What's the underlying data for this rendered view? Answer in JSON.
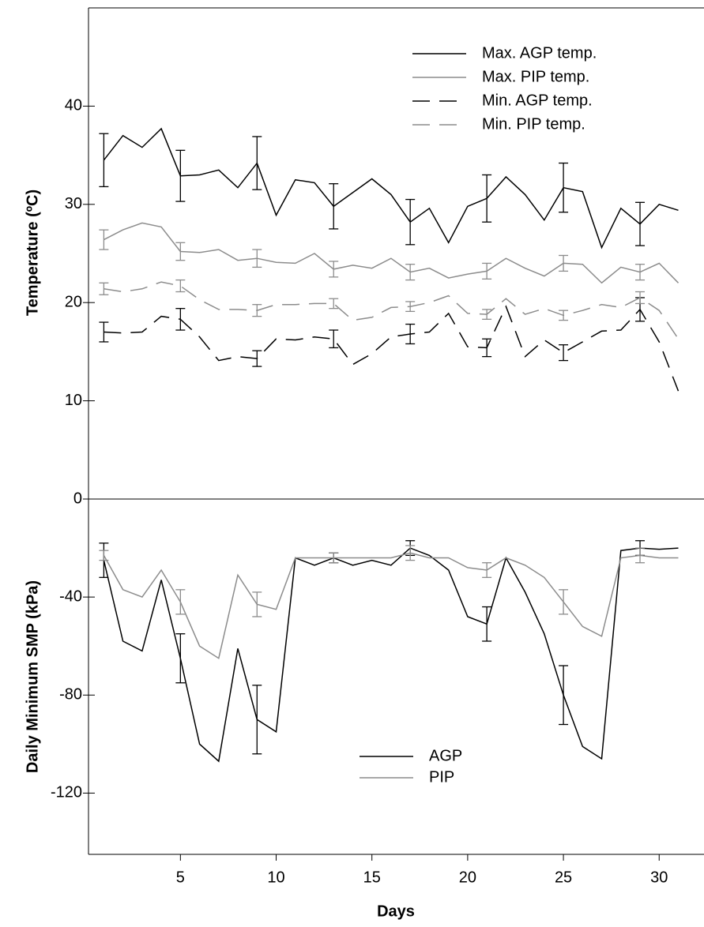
{
  "chart_data": [
    {
      "type": "line",
      "ylabel": "Temperature (ºC)",
      "x": [
        1,
        2,
        3,
        4,
        5,
        6,
        7,
        8,
        9,
        10,
        11,
        12,
        13,
        14,
        15,
        16,
        17,
        18,
        19,
        20,
        21,
        22,
        23,
        24,
        25,
        26,
        27,
        28,
        29,
        30,
        31
      ],
      "xlim": [
        0.2,
        32.3
      ],
      "ylim": [
        0,
        50
      ],
      "yticks": [
        0,
        10,
        20,
        30,
        40
      ],
      "legend": "upper right",
      "series": [
        {
          "name": "Max. AGP temp.",
          "color": "#000000",
          "dashed": false,
          "values": [
            34.5,
            37,
            35.8,
            37.7,
            32.9,
            33,
            33.5,
            31.7,
            34.2,
            28.9,
            32.5,
            32.2,
            29.8,
            31.2,
            32.6,
            31,
            28.2,
            29.6,
            26.1,
            29.8,
            30.6,
            32.8,
            31,
            28.4,
            31.7,
            31.3,
            25.6,
            29.6,
            28,
            30,
            29.4
          ],
          "errors": [
            2.7,
            null,
            null,
            null,
            2.6,
            null,
            null,
            null,
            2.7,
            null,
            null,
            null,
            2.3,
            null,
            null,
            null,
            2.3,
            null,
            null,
            null,
            2.4,
            null,
            null,
            null,
            2.5,
            null,
            null,
            null,
            2.2,
            null,
            null
          ]
        },
        {
          "name": "Max. PIP temp.",
          "color": "#8c8c8c",
          "dashed": false,
          "values": [
            26.4,
            27.4,
            28.1,
            27.7,
            25.2,
            25.1,
            25.4,
            24.3,
            24.5,
            24.1,
            24,
            25,
            23.4,
            23.8,
            23.5,
            24.5,
            23.1,
            23.5,
            22.5,
            22.9,
            23.2,
            24.5,
            23.5,
            22.7,
            24,
            23.9,
            22,
            23.6,
            23.1,
            24,
            22
          ],
          "errors": [
            1,
            null,
            null,
            null,
            0.9,
            null,
            null,
            null,
            0.9,
            null,
            null,
            null,
            0.8,
            null,
            null,
            null,
            0.8,
            null,
            null,
            null,
            0.8,
            null,
            null,
            null,
            0.8,
            null,
            null,
            null,
            0.8,
            null,
            null
          ]
        },
        {
          "name": "Min. AGP temp.",
          "color": "#000000",
          "dashed": true,
          "values": [
            17,
            16.9,
            17,
            18.6,
            18.3,
            16.5,
            14.1,
            14.5,
            14.3,
            16.3,
            16.2,
            16.5,
            16.3,
            13.7,
            14.8,
            16.5,
            16.8,
            17,
            18.9,
            15.5,
            15.4,
            19.6,
            14.5,
            16.2,
            14.9,
            16,
            17.1,
            17.2,
            19.3,
            16,
            11
          ],
          "errors": [
            1,
            null,
            null,
            null,
            1.1,
            null,
            null,
            null,
            0.8,
            null,
            null,
            null,
            0.9,
            null,
            null,
            null,
            1,
            null,
            null,
            null,
            0.9,
            null,
            null,
            null,
            0.8,
            null,
            null,
            null,
            1.2,
            null,
            null
          ]
        },
        {
          "name": "Min. PIP temp.",
          "color": "#8c8c8c",
          "dashed": true,
          "values": [
            21.4,
            21.1,
            21.4,
            22.1,
            21.7,
            20.3,
            19.3,
            19.3,
            19.2,
            19.8,
            19.8,
            19.9,
            19.9,
            18.2,
            18.5,
            19.5,
            19.6,
            20,
            20.7,
            18.9,
            18.8,
            20.4,
            18.8,
            19.4,
            18.7,
            19.2,
            19.8,
            19.5,
            20.5,
            19.2,
            16.3
          ],
          "errors": [
            0.6,
            null,
            null,
            null,
            0.6,
            null,
            null,
            null,
            0.6,
            null,
            null,
            null,
            0.5,
            null,
            null,
            null,
            0.5,
            null,
            null,
            null,
            0.5,
            null,
            null,
            null,
            0.5,
            null,
            null,
            null,
            0.6,
            null,
            null
          ]
        }
      ]
    },
    {
      "type": "line",
      "ylabel": "Daily Minimum SMP (kPa)",
      "xlabel": "Days",
      "x": [
        1,
        2,
        3,
        4,
        5,
        6,
        7,
        8,
        9,
        10,
        11,
        12,
        13,
        14,
        15,
        16,
        17,
        18,
        19,
        20,
        21,
        22,
        23,
        24,
        25,
        26,
        27,
        28,
        29,
        30,
        31
      ],
      "xlim": [
        0.2,
        32.3
      ],
      "xticks": [
        5,
        10,
        15,
        20,
        25,
        30
      ],
      "ylim": [
        -145,
        0
      ],
      "yticks": [
        -40,
        -80,
        -120
      ],
      "legend": "lower center",
      "series": [
        {
          "name": "AGP",
          "color": "#000000",
          "dashed": false,
          "values": [
            -25,
            -58,
            -62,
            -33,
            -65,
            -100,
            -107,
            -61,
            -90,
            -95,
            -24,
            -27,
            -24,
            -27,
            -25,
            -27,
            -20,
            -23,
            -29,
            -48,
            -51,
            -24,
            -38,
            -55,
            -80,
            -101,
            -106,
            -21,
            -20,
            -20.5,
            -20
          ],
          "errors": [
            7,
            null,
            null,
            null,
            10,
            null,
            null,
            null,
            14,
            null,
            null,
            null,
            2,
            null,
            null,
            null,
            3,
            null,
            null,
            null,
            7,
            null,
            null,
            null,
            12,
            null,
            null,
            null,
            3,
            null,
            null
          ]
        },
        {
          "name": "PIP",
          "color": "#8c8c8c",
          "dashed": false,
          "values": [
            -23,
            -37,
            -40,
            -29,
            -42,
            -60,
            -65,
            -31,
            -43,
            -45,
            -24,
            -24,
            -24,
            -24,
            -24,
            -24,
            -22,
            -24,
            -24,
            -28,
            -29,
            -24,
            -27,
            -32,
            -42,
            -52,
            -56,
            -24,
            -23,
            -24,
            -24
          ],
          "errors": [
            2,
            null,
            null,
            null,
            5,
            null,
            null,
            null,
            5,
            null,
            null,
            null,
            2,
            null,
            null,
            null,
            3,
            null,
            null,
            null,
            3,
            null,
            null,
            null,
            5,
            null,
            null,
            null,
            3,
            null,
            null
          ]
        }
      ]
    }
  ]
}
